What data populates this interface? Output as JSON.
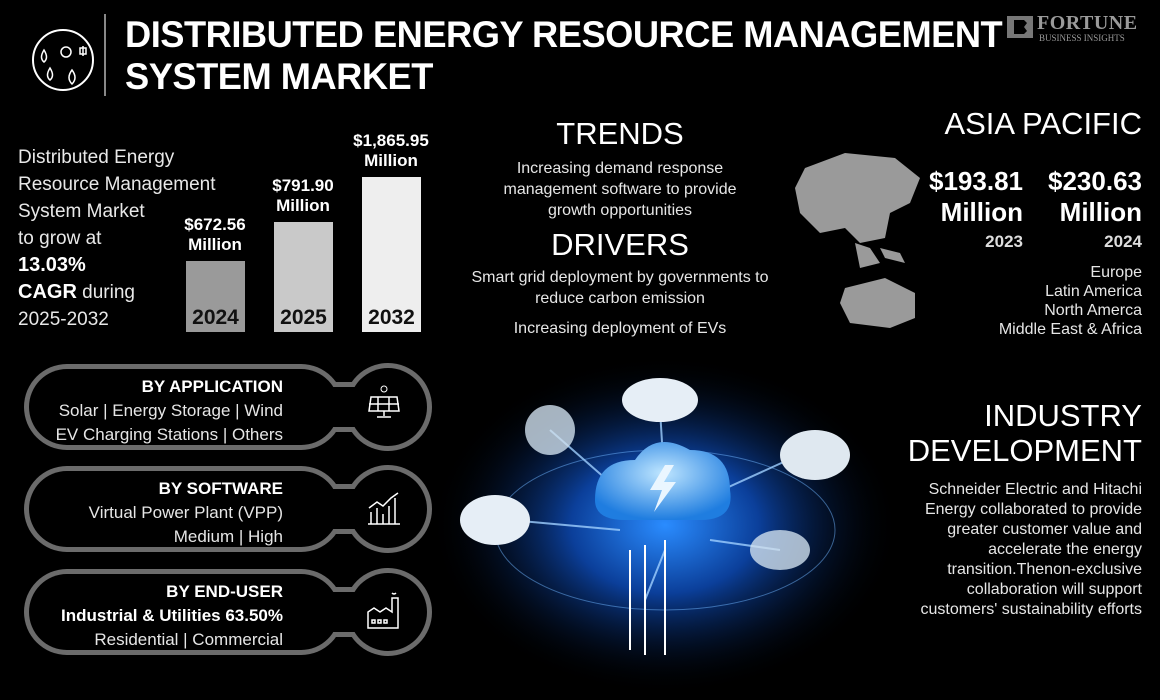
{
  "header": {
    "title_line1": "DISTRIBUTED ENERGY RESOURCE MANAGEMENT",
    "title_line2": "SYSTEM MARKET",
    "logo": "FORTUNE BUSINESS INSIGHTS",
    "logo_main": "FORTUNE",
    "logo_sub": "BUSINESS INSIGHTS",
    "icon": "renewable-energy-icon"
  },
  "intro": {
    "line1": "Distributed Energy",
    "line2": "Resource Management",
    "line3": "System Market",
    "line4": "to grow at",
    "cagr": "13.03%",
    "cagr_label": "CAGR",
    "line6": "during",
    "period": "2025-2032"
  },
  "bar_chart": {
    "type": "bar",
    "categories": [
      "2024",
      "2025",
      "2032"
    ],
    "values": [
      672.56,
      791.9,
      1865.95
    ],
    "unit": "Million",
    "labels": [
      "$672.56",
      "$791.90",
      "$1,865.95"
    ],
    "colors": [
      "#9a9a9a",
      "#c9c9c9",
      "#eeeeee"
    ]
  },
  "trends": {
    "title": "TRENDS",
    "text": "Increasing demand response management software to provide growth opportunities"
  },
  "drivers": {
    "title": "DRIVERS",
    "items": [
      "Smart grid deployment by governments to reduce carbon emission",
      "Increasing deployment of EVs"
    ]
  },
  "region": {
    "title": "ASIA PACIFIC",
    "v1": "$193.81",
    "v1_unit": "Million",
    "v1_year": "2023",
    "v2": "$230.63",
    "v2_unit": "Million",
    "v2_year": "2024",
    "others": [
      "Europe",
      "Latin America",
      "North Amerca",
      "Middle East & Africa"
    ]
  },
  "segments": [
    {
      "title": "BY APPLICATION",
      "lines": [
        "Solar  |  Energy Storage  |  Wind",
        "EV Charging Stations  |  Others"
      ],
      "icon": "solar-panel-icon"
    },
    {
      "title": "BY SOFTWARE",
      "lines": [
        "Virtual Power Plant (VPP)",
        "Medium  |  High"
      ],
      "icon": "growth-chart-icon"
    },
    {
      "title": "BY END-USER",
      "bold_line": "Industrial & Utilities 63.50%",
      "lines": [
        "Residential  |  Commercial"
      ],
      "icon": "factory-icon"
    }
  ],
  "industry": {
    "title_line1": "INDUSTRY",
    "title_line2": "DEVELOPMENT",
    "text": "Schneider Electric and Hitachi Energy collaborated to provide greater customer value and accelerate the energy transition.Thenon-exclusive collaboration will support customers' sustainability efforts"
  },
  "colors": {
    "background": "#000000",
    "pill_outline": "#6b6b6b",
    "glow": "#1a7bff"
  }
}
